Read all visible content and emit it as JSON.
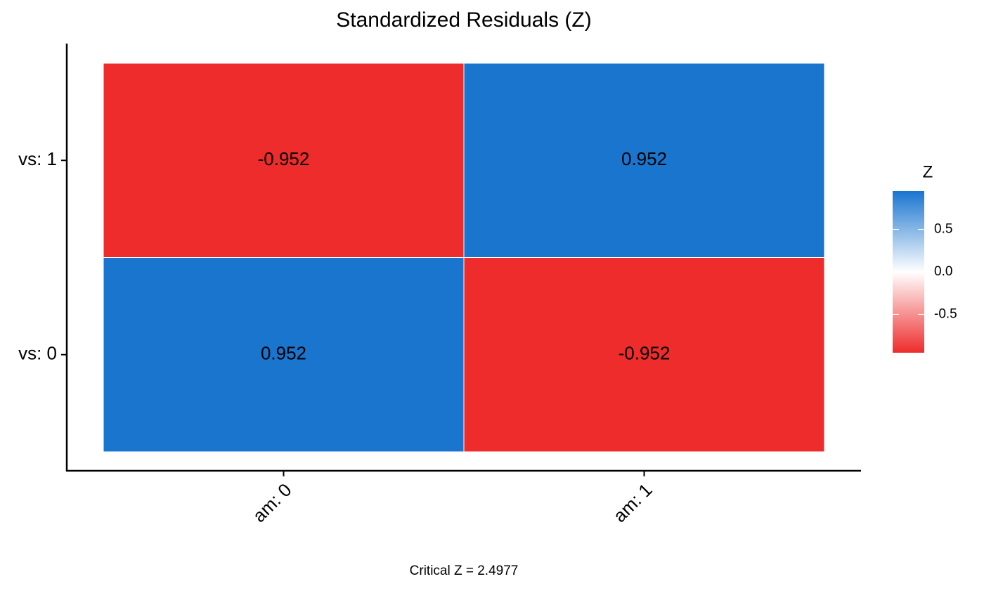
{
  "chart_data": {
    "type": "heatmap",
    "title": "Standardized Residuals (Z)",
    "x_categories": [
      "am: 0",
      "am: 1"
    ],
    "y_categories": [
      "vs: 0",
      "vs: 1"
    ],
    "values": [
      [
        0.952,
        -0.952
      ],
      [
        -0.952,
        0.952
      ]
    ],
    "caption": "Critical Z = 2.4977",
    "legend_title": "Z",
    "zlim": [
      -0.952,
      0.952
    ],
    "zticks": [
      0.5,
      {
        "value": 0,
        "label": "0.0"
      },
      -0.5
    ],
    "colors": {
      "low": "#ee2c2c",
      "mid": "#ffffff",
      "high": "#1a75cf"
    }
  }
}
